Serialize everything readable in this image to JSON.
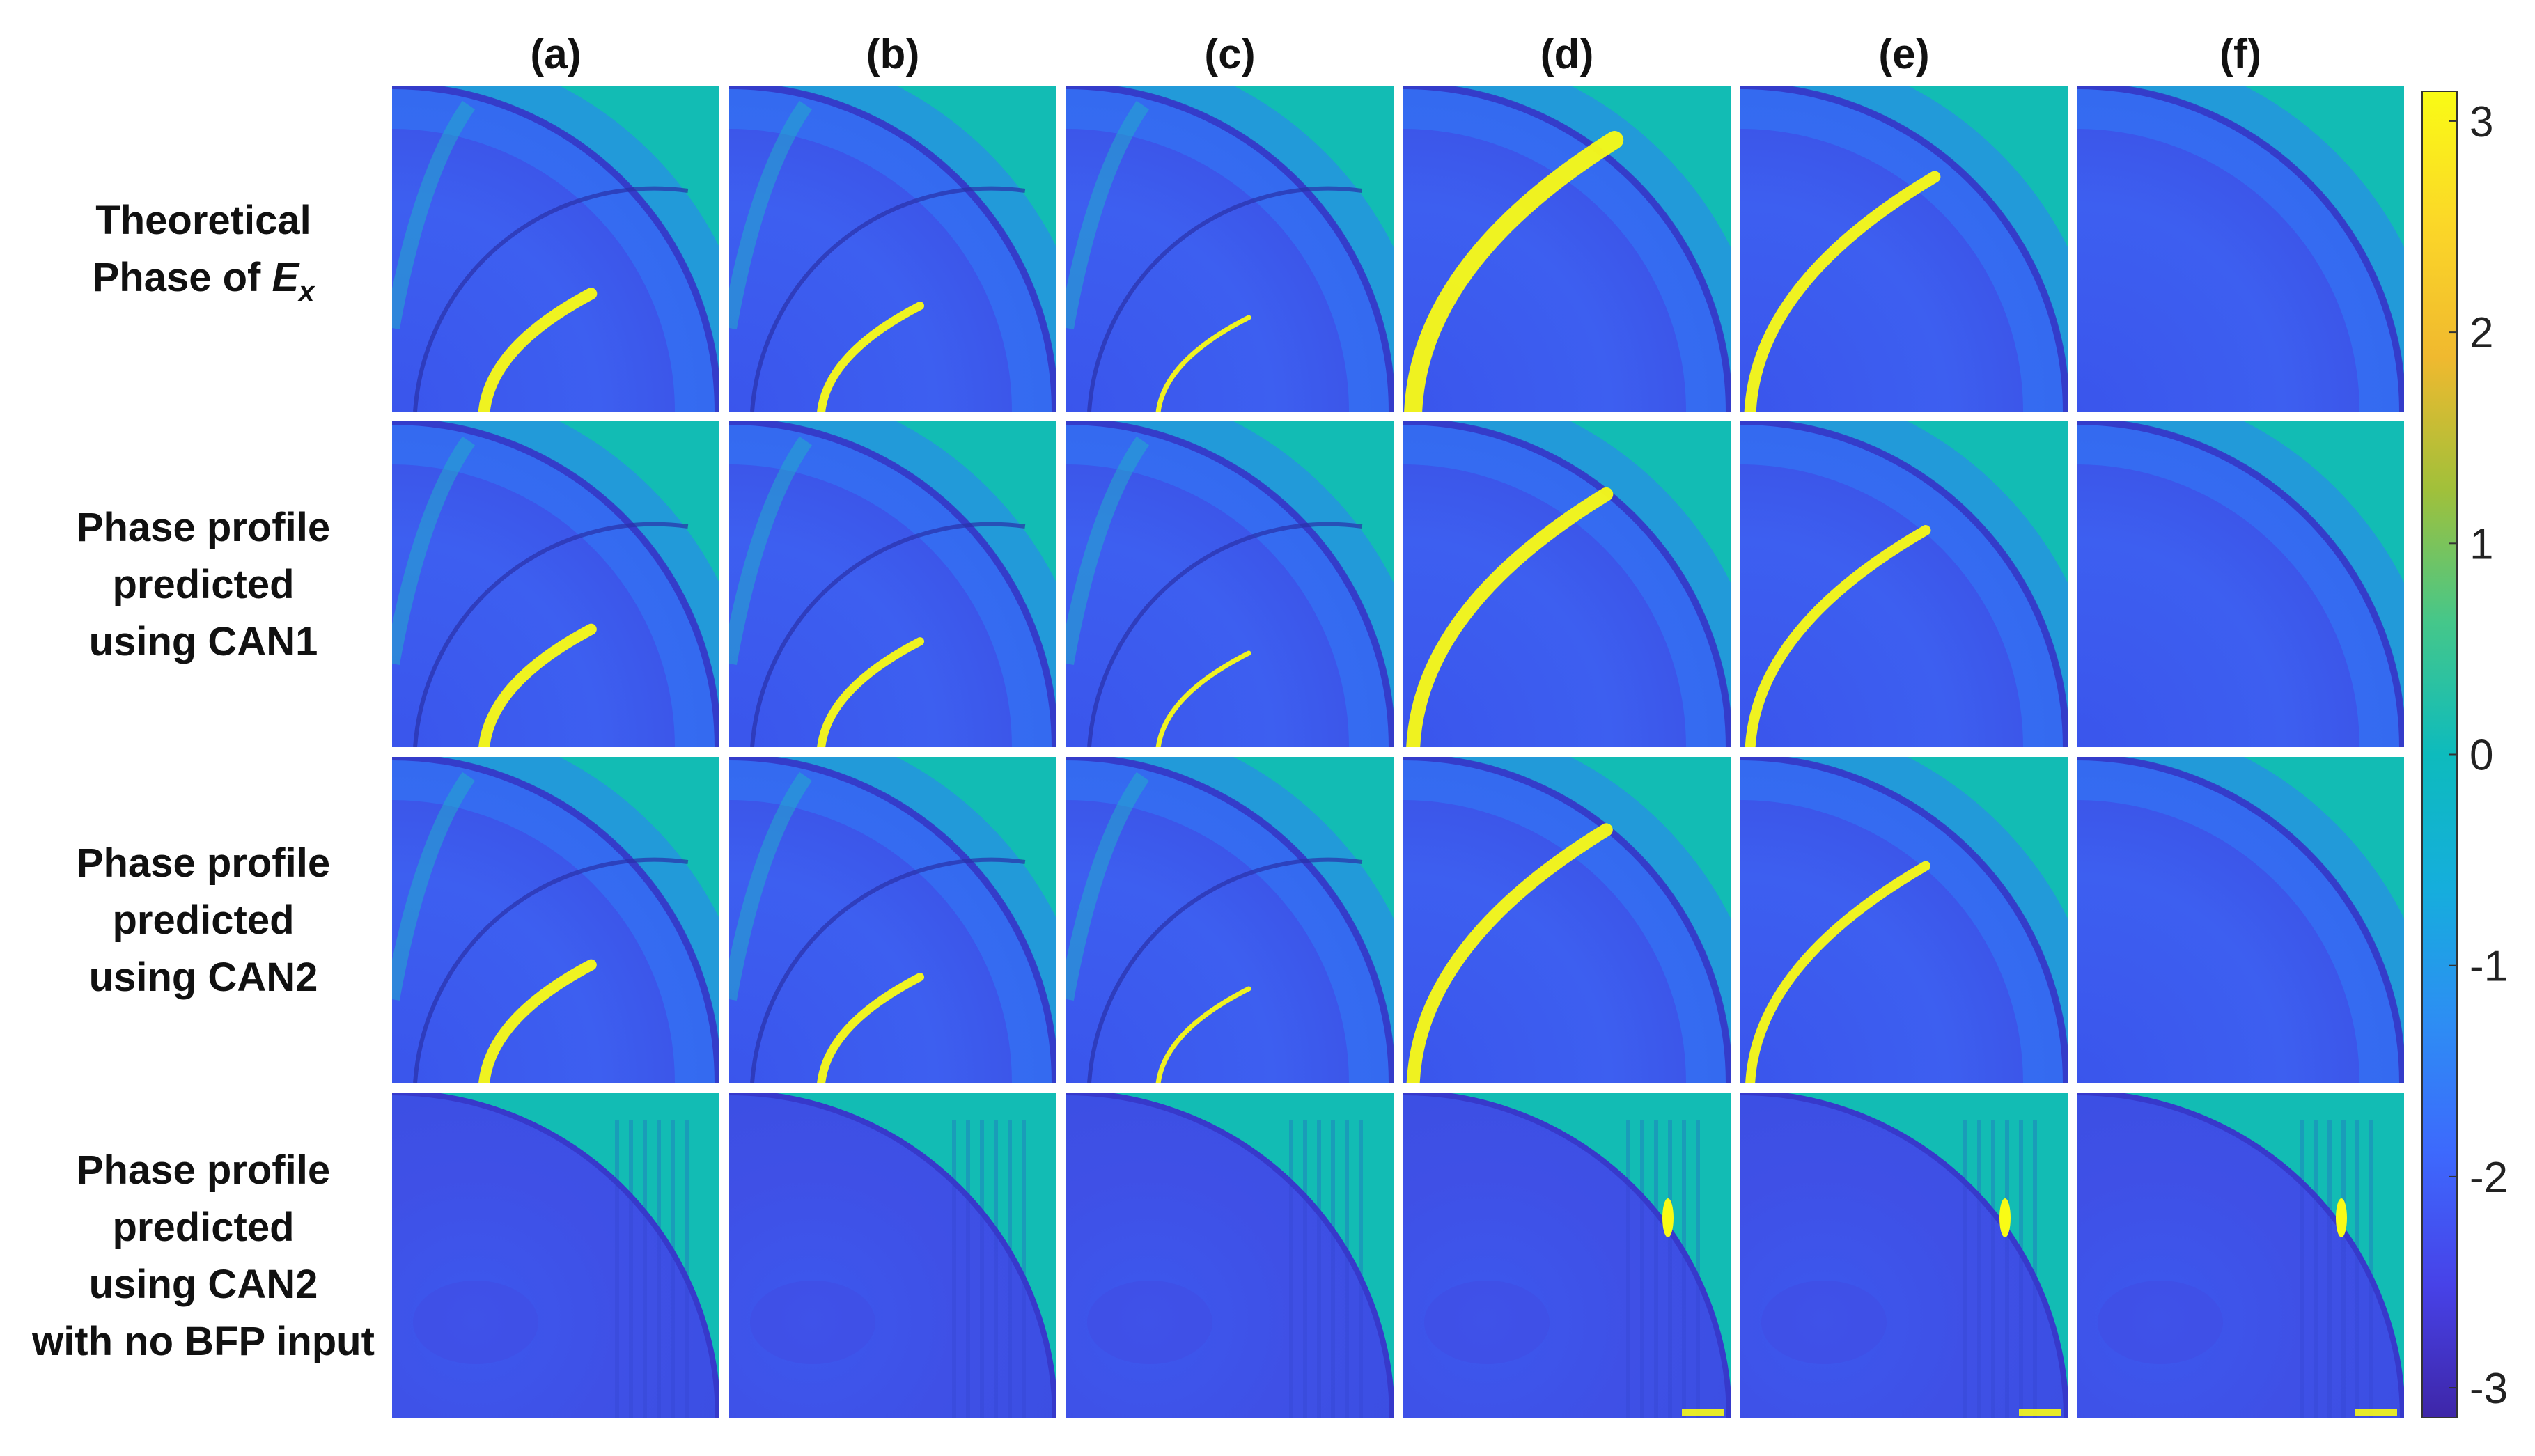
{
  "figure": {
    "column_labels": [
      "(a)",
      "(b)",
      "(c)",
      "(d)",
      "(e)",
      "(f)"
    ],
    "row_labels": [
      {
        "lines": [
          "Theoretical",
          "Phase of "
        ],
        "math_var": "E",
        "math_sub": "x"
      },
      {
        "lines": [
          "Phase profile",
          "predicted",
          "using CAN1"
        ]
      },
      {
        "lines": [
          "Phase profile",
          "predicted",
          "using CAN2"
        ]
      },
      {
        "lines": [
          "Phase profile",
          "predicted",
          "using CAN2",
          "with no BFP input"
        ]
      }
    ],
    "colorbar": {
      "min": -3.1416,
      "max": 3.1416,
      "ticks": [
        "3",
        "2",
        "1",
        "0",
        "-1",
        "-2",
        "-3"
      ],
      "tick_values": [
        3,
        2,
        1,
        0,
        -1,
        -2,
        -3
      ],
      "colormap": "parula",
      "stops": [
        "#3e26a8",
        "#4742e8",
        "#3d69fd",
        "#2d8ef3",
        "#15aedc",
        "#0dbbbd",
        "#45c78a",
        "#a1c03a",
        "#f0b92f",
        "#fbd728",
        "#f9fb15"
      ]
    },
    "colors": {
      "background_phase_zero": "#12bcb4",
      "body_phase_blue": "#3b58ee",
      "outer_ring_dark": "#3531c0",
      "phase_wrap_yellow": "#f9fb15",
      "inner_ring_light": "#2f7df7"
    },
    "panels": [
      [
        {
          "inner_ring": true,
          "wrap_strength": 0.55,
          "wrap_extent": 0.6
        },
        {
          "inner_ring": true,
          "wrap_strength": 0.3,
          "wrap_extent": 0.55
        },
        {
          "inner_ring": true,
          "wrap_strength": 0.05,
          "wrap_extent": 0.5
        },
        {
          "inner_ring": false,
          "wrap_strength": 1.0,
          "wrap_extent": 0.95
        },
        {
          "inner_ring": false,
          "wrap_strength": 0.55,
          "wrap_extent": 0.85
        },
        {
          "inner_ring": false,
          "wrap_strength": 0.0,
          "wrap_extent": 0.0
        }
      ],
      [
        {
          "inner_ring": true,
          "wrap_strength": 0.5,
          "wrap_extent": 0.6
        },
        {
          "inner_ring": true,
          "wrap_strength": 0.3,
          "wrap_extent": 0.55
        },
        {
          "inner_ring": true,
          "wrap_strength": 0.05,
          "wrap_extent": 0.5
        },
        {
          "inner_ring": false,
          "wrap_strength": 0.7,
          "wrap_extent": 0.9
        },
        {
          "inner_ring": false,
          "wrap_strength": 0.45,
          "wrap_extent": 0.8
        },
        {
          "inner_ring": false,
          "wrap_strength": 0.0,
          "wrap_extent": 0.0
        }
      ],
      [
        {
          "inner_ring": true,
          "wrap_strength": 0.5,
          "wrap_extent": 0.6
        },
        {
          "inner_ring": true,
          "wrap_strength": 0.3,
          "wrap_extent": 0.55
        },
        {
          "inner_ring": true,
          "wrap_strength": 0.05,
          "wrap_extent": 0.5
        },
        {
          "inner_ring": false,
          "wrap_strength": 0.65,
          "wrap_extent": 0.9
        },
        {
          "inner_ring": false,
          "wrap_strength": 0.4,
          "wrap_extent": 0.8
        },
        {
          "inner_ring": false,
          "wrap_strength": 0.0,
          "wrap_extent": 0.0
        }
      ],
      [
        {
          "noisy": true,
          "yellow_blob": false
        },
        {
          "noisy": true,
          "yellow_blob": false
        },
        {
          "noisy": true,
          "yellow_blob": false
        },
        {
          "noisy": true,
          "yellow_blob": true
        },
        {
          "noisy": true,
          "yellow_blob": true
        },
        {
          "noisy": true,
          "yellow_blob": true
        }
      ]
    ]
  }
}
